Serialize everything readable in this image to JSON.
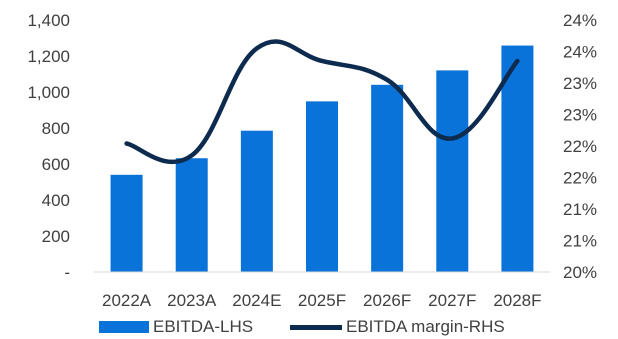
{
  "chart_data": {
    "type": "bar",
    "categories": [
      "2022A",
      "2023A",
      "2024E",
      "2025F",
      "2026F",
      "2027F",
      "2028F"
    ],
    "series": [
      {
        "name": "EBITDA-LHS",
        "type": "bar",
        "axis": "left",
        "values": [
          540,
          632,
          785,
          948,
          1040,
          1120,
          1258
        ]
      },
      {
        "name": "EBITDA margin-RHS",
        "type": "line",
        "axis": "right",
        "values": [
          22.04,
          21.85,
          23.55,
          23.35,
          23.05,
          22.12,
          23.35
        ]
      }
    ],
    "left_axis": {
      "ylim": [
        0,
        1400
      ],
      "ticks": [
        0,
        200,
        400,
        600,
        800,
        1000,
        1200,
        1400
      ],
      "tick_labels": [
        "-",
        "200",
        "400",
        "600",
        "800",
        "1,000",
        "1,200",
        "1,400"
      ]
    },
    "right_axis": {
      "ylim": [
        20,
        24
      ],
      "ticks": [
        20,
        20.5,
        21,
        21.5,
        22,
        22.5,
        23,
        23.5,
        24
      ],
      "tick_labels": [
        "20%",
        "21%",
        "21%",
        "22%",
        "22%",
        "23%",
        "23%",
        "24%",
        "24%"
      ]
    },
    "grid": false,
    "legend_position": "bottom",
    "colors": {
      "bar": "#0a73d9",
      "line": "#0d2b4e",
      "axis": "#d9d9d9",
      "text": "#404040"
    }
  },
  "legend": {
    "bar_label": "EBITDA-LHS",
    "line_label": "EBITDA margin-RHS"
  }
}
